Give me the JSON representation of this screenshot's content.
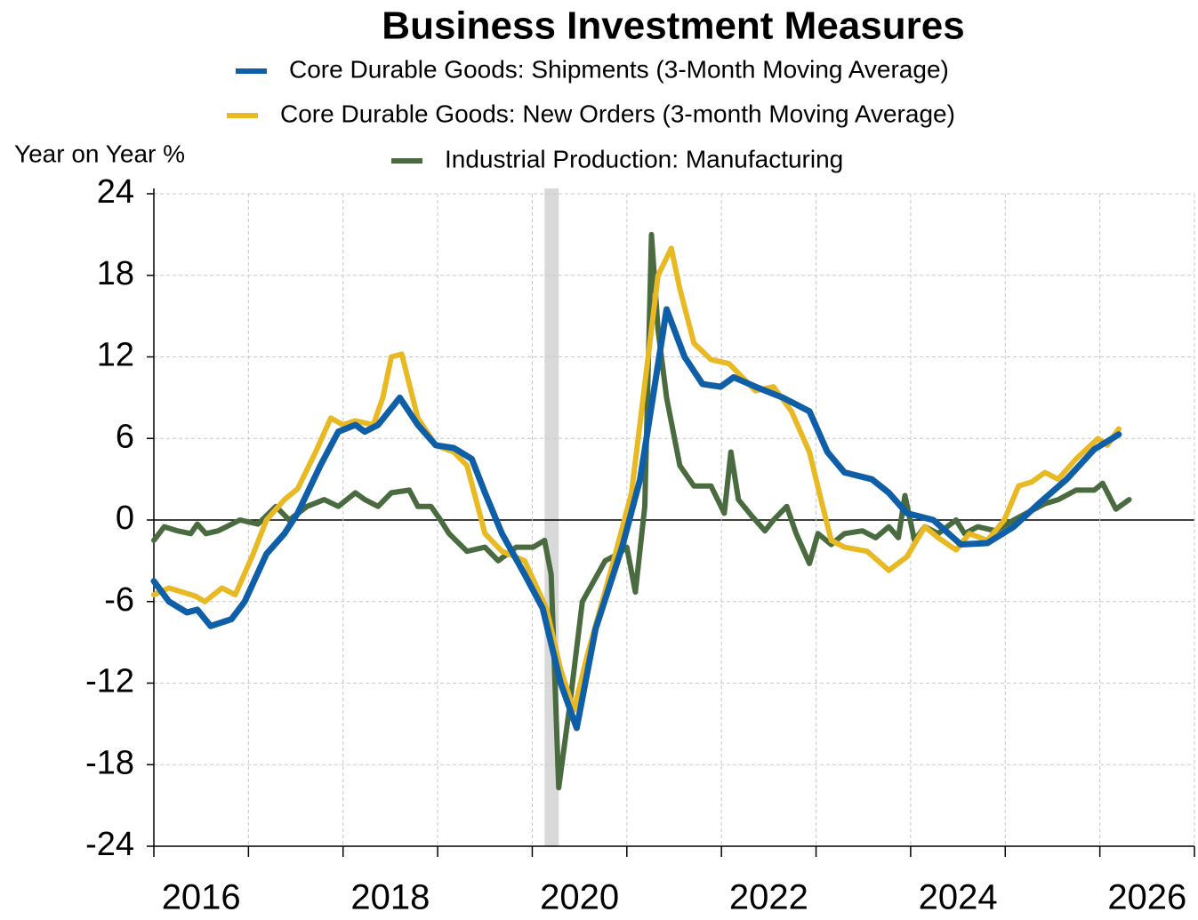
{
  "chart_data": {
    "type": "line",
    "title": "Business Investment Measures",
    "ylabel": "Year on Year %",
    "xlim": [
      2016,
      2027
    ],
    "xticks": [
      2016,
      2017,
      2018,
      2019,
      2020,
      2021,
      2022,
      2023,
      2024,
      2025,
      2026,
      2027
    ],
    "xtick_labels": [
      {
        "value": 2016.5,
        "label": "2016"
      },
      {
        "value": 2018.5,
        "label": "2018"
      },
      {
        "value": 2020.5,
        "label": "2020"
      },
      {
        "value": 2022.5,
        "label": "2022"
      },
      {
        "value": 2024.5,
        "label": "2024"
      },
      {
        "value": 2026.5,
        "label": "2026"
      }
    ],
    "ylim": [
      -24,
      24
    ],
    "yticks": [
      24,
      18,
      12,
      6,
      0,
      -6,
      -12,
      -18,
      -24
    ],
    "grid": true,
    "shaded_regions": [
      {
        "x": [
          2020.13,
          2020.28
        ],
        "color": "#d9d9d9"
      }
    ],
    "series": [
      {
        "name": "Core Durable Goods: Shipments (3-Month Moving Average)",
        "color": "#0f5ea8",
        "x": [
          2016.0,
          2016.16,
          2016.35,
          2016.46,
          2016.6,
          2016.82,
          2016.96,
          2017.19,
          2017.38,
          2017.52,
          2017.76,
          2017.95,
          2018.13,
          2018.23,
          2018.37,
          2018.6,
          2018.79,
          2018.98,
          2019.17,
          2019.36,
          2019.5,
          2019.68,
          2019.92,
          2020.11,
          2020.3,
          2020.47,
          2020.67,
          2020.95,
          2021.14,
          2021.42,
          2021.61,
          2021.8,
          2021.99,
          2022.13,
          2022.36,
          2022.65,
          2022.93,
          2023.12,
          2023.3,
          2023.59,
          2023.77,
          2023.96,
          2024.24,
          2024.53,
          2024.81,
          2025.09,
          2025.37,
          2025.65,
          2025.94,
          2026.2
        ],
        "values": [
          -4.5,
          -6,
          -6.8,
          -6.6,
          -7.8,
          -7.3,
          -6,
          -2.5,
          -1,
          0.5,
          4,
          6.5,
          7,
          6.5,
          7,
          9,
          7,
          5.5,
          5.3,
          4.5,
          2,
          -1,
          -4,
          -6.5,
          -12,
          -15.3,
          -8,
          -2,
          3,
          15.5,
          12,
          10,
          9.8,
          10.5,
          9.8,
          9,
          8,
          5,
          3.5,
          3,
          2,
          0.5,
          0,
          -1.8,
          -1.7,
          -0.5,
          1.3,
          3,
          5.2,
          6.3
        ]
      },
      {
        "name": "Core Durable Goods: New Orders (3-month Moving Average)",
        "color": "#e8b923",
        "x": [
          2016.0,
          2016.16,
          2016.44,
          2016.54,
          2016.72,
          2016.86,
          2017.05,
          2017.19,
          2017.38,
          2017.52,
          2017.71,
          2017.87,
          2018.0,
          2018.13,
          2018.32,
          2018.42,
          2018.51,
          2018.62,
          2018.79,
          2018.98,
          2019.17,
          2019.31,
          2019.5,
          2019.68,
          2019.92,
          2020.15,
          2020.3,
          2020.44,
          2020.58,
          2020.86,
          2021.05,
          2021.19,
          2021.33,
          2021.47,
          2021.56,
          2021.71,
          2021.89,
          2022.08,
          2022.22,
          2022.36,
          2022.55,
          2022.74,
          2022.93,
          2023.07,
          2023.16,
          2023.3,
          2023.54,
          2023.77,
          2023.96,
          2024.15,
          2024.29,
          2024.48,
          2024.62,
          2024.81,
          2024.99,
          2025.14,
          2025.28,
          2025.42,
          2025.56,
          2025.75,
          2025.98,
          2026.08,
          2026.2
        ],
        "values": [
          -5.5,
          -5,
          -5.6,
          -6,
          -5,
          -5.5,
          -2.5,
          0,
          1.5,
          2.3,
          5,
          7.5,
          7,
          7.3,
          7,
          9,
          12,
          12.2,
          7.5,
          5.5,
          5,
          4,
          -1,
          -2.3,
          -3,
          -6.5,
          -11,
          -14,
          -10,
          -3,
          2,
          10,
          18,
          20,
          17,
          13,
          11.8,
          11.5,
          10.5,
          9.5,
          9.8,
          8,
          5,
          1,
          -1.5,
          -2,
          -2.3,
          -3.7,
          -2.7,
          -0.5,
          -1.3,
          -2.2,
          -1,
          -1.5,
          0,
          2.5,
          2.8,
          3.5,
          3,
          4.5,
          6,
          5.5,
          6.7
        ]
      },
      {
        "name": "Industrial Production: Manufacturing",
        "color": "#4a6b3f",
        "x": [
          2016.0,
          2016.11,
          2016.25,
          2016.39,
          2016.46,
          2016.55,
          2016.68,
          2016.91,
          2017.1,
          2017.29,
          2017.43,
          2017.62,
          2017.8,
          2017.95,
          2018.13,
          2018.23,
          2018.37,
          2018.51,
          2018.7,
          2018.79,
          2018.93,
          2019.03,
          2019.12,
          2019.31,
          2019.5,
          2019.64,
          2019.83,
          2020.01,
          2020.13,
          2020.2,
          2020.28,
          2020.39,
          2020.53,
          2020.77,
          2020.91,
          2021.0,
          2021.09,
          2021.19,
          2021.26,
          2021.33,
          2021.42,
          2021.56,
          2021.71,
          2021.89,
          2022.03,
          2022.1,
          2022.18,
          2022.32,
          2022.46,
          2022.55,
          2022.69,
          2022.79,
          2022.93,
          2023.02,
          2023.16,
          2023.3,
          2023.49,
          2023.63,
          2023.77,
          2023.87,
          2023.94,
          2024.04,
          2024.15,
          2024.29,
          2024.48,
          2024.57,
          2024.71,
          2024.9,
          2025.09,
          2025.28,
          2025.42,
          2025.56,
          2025.75,
          2025.94,
          2026.03,
          2026.17,
          2026.31
        ],
        "values": [
          -1.5,
          -0.5,
          -0.8,
          -1,
          -0.3,
          -1,
          -0.8,
          0,
          -0.3,
          1,
          0,
          1,
          1.5,
          1,
          2,
          1.5,
          1,
          2,
          2.2,
          1,
          1,
          0,
          -1,
          -2.3,
          -2,
          -3,
          -2,
          -2,
          -1.5,
          -4,
          -19.7,
          -14,
          -6,
          -3,
          -2.5,
          -2,
          -5.3,
          1,
          21,
          14,
          9,
          4,
          2.5,
          2.5,
          0.5,
          5,
          1.5,
          0.3,
          -0.8,
          0,
          1,
          -1,
          -3.2,
          -1,
          -1.8,
          -1,
          -0.8,
          -1.3,
          -0.5,
          -1.3,
          1.8,
          -1.5,
          -0.5,
          -1,
          0,
          -1,
          -0.5,
          -0.8,
          0,
          0.7,
          1.2,
          1.5,
          2.2,
          2.2,
          2.7,
          0.8,
          1.5
        ]
      }
    ]
  }
}
